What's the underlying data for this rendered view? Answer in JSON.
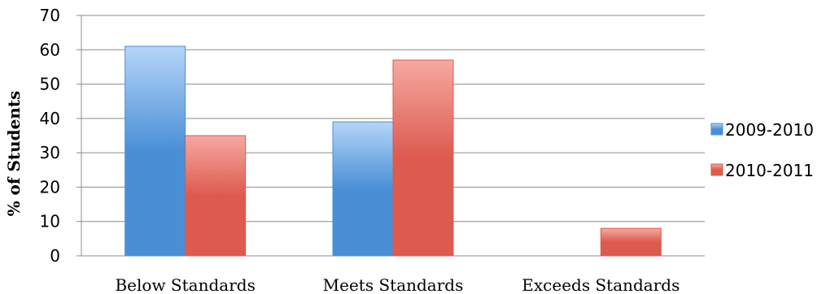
{
  "chart_data": {
    "type": "bar",
    "categories": [
      "Below Standards",
      "Meets Standards",
      "Exceeds Standards"
    ],
    "series": [
      {
        "name": "2009-2010",
        "values": [
          61,
          39,
          0
        ],
        "color": "#4a8fd6"
      },
      {
        "name": "2010-2011",
        "values": [
          35,
          57,
          8
        ],
        "color": "#dc5a4e"
      }
    ],
    "title": "",
    "xlabel": "",
    "ylabel": "% of Students",
    "ylim": [
      0,
      70
    ],
    "yticks": [
      0,
      10,
      20,
      30,
      40,
      50,
      60,
      70
    ],
    "grid": true,
    "legend_position": "right"
  }
}
